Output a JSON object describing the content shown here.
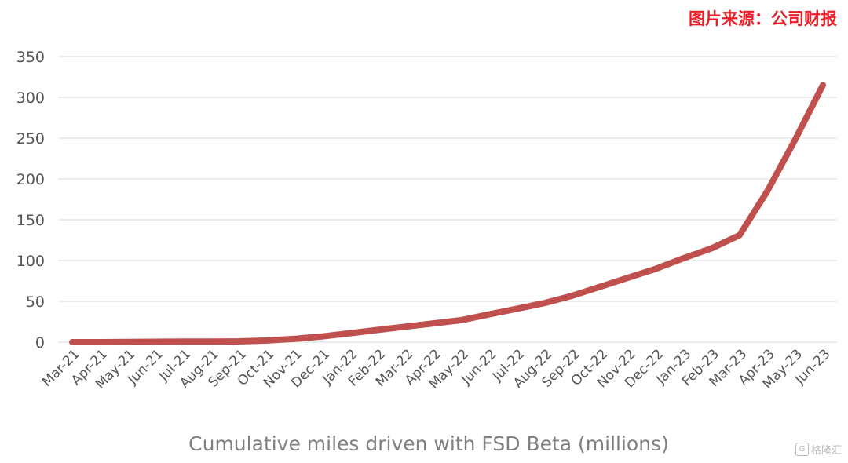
{
  "source_note": "图片来源：公司财报",
  "watermark": {
    "icon": "G",
    "text": "格隆汇"
  },
  "chart_data": {
    "type": "line",
    "title": "",
    "xlabel": "Cumulative miles driven with FSD Beta (millions)",
    "ylabel": "",
    "ylim": [
      0,
      350
    ],
    "yticks": [
      0,
      50,
      100,
      150,
      200,
      250,
      300,
      350
    ],
    "grid": true,
    "legend": "none",
    "categories": [
      "Mar-21",
      "Apr-21",
      "May-21",
      "Jun-21",
      "Jul-21",
      "Aug-21",
      "Sep-21",
      "Oct-21",
      "Nov-21",
      "Dec-21",
      "Jan-22",
      "Feb-22",
      "Mar-22",
      "Apr-22",
      "May-22",
      "Jun-22",
      "Jul-22",
      "Aug-22",
      "Sep-22",
      "Oct-22",
      "Nov-22",
      "Dec-22",
      "Jan-23",
      "Feb-23",
      "Mar-23",
      "Apr-23",
      "May-23",
      "Jun-23"
    ],
    "series": [
      {
        "color": "#c0504d",
        "values": [
          0,
          0,
          0.3,
          0.5,
          0.7,
          0.8,
          1,
          2,
          4,
          7,
          11,
          15,
          19,
          23,
          27,
          34,
          41,
          48,
          57,
          68,
          79,
          90,
          103,
          115,
          131,
          185,
          248,
          315
        ]
      }
    ]
  }
}
